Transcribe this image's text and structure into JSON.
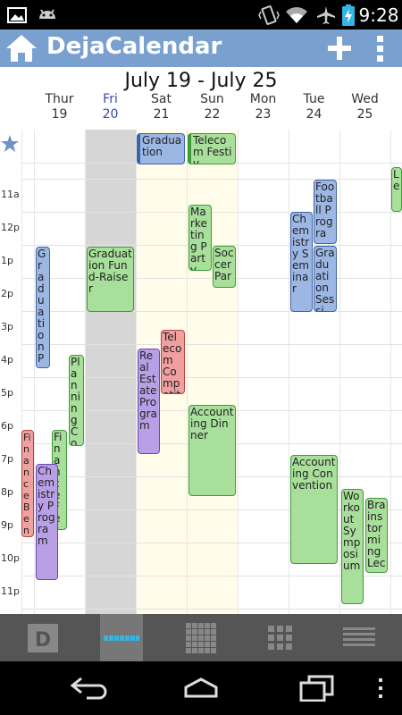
{
  "status_bar": {
    "time": "9:28",
    "icons": [
      "image-icon",
      "android-icon",
      "vibrate-icon",
      "wifi-icon",
      "airplane-icon",
      "battery-charging-icon"
    ]
  },
  "app": {
    "title": "DejaCalendar",
    "icons": [
      "home-icon",
      "add-icon",
      "overflow-menu-icon"
    ]
  },
  "week": {
    "range": "July 19 - July 25",
    "days": [
      {
        "name": "Thur",
        "date": "19"
      },
      {
        "name": "Fri",
        "date": "20"
      },
      {
        "name": "Sat",
        "date": "21"
      },
      {
        "name": "Sun",
        "date": "22"
      },
      {
        "name": "Mon",
        "date": "23"
      },
      {
        "name": "Tue",
        "date": "24"
      },
      {
        "name": "Wed",
        "date": "25"
      }
    ],
    "today_index": 1,
    "hour_labels": [
      "11a",
      "12p",
      "1p",
      "2p",
      "3p",
      "4p",
      "5p",
      "6p",
      "7p",
      "8p",
      "9p",
      "10p",
      "11p"
    ]
  },
  "events": [
    {
      "title": "Graduation",
      "color": "blue",
      "allday": true
    },
    {
      "title": "Telecom Festiv",
      "color": "green",
      "allday": true
    },
    {
      "title": "Graduation Fund-Raiser",
      "color": "green"
    },
    {
      "title": "Graduation Party",
      "color": "blue"
    },
    {
      "title": "Planning Co",
      "color": "green"
    },
    {
      "title": "Finance Fes",
      "color": "green"
    },
    {
      "title": "Chemistry Program",
      "color": "purple"
    },
    {
      "title": "Fi nance Bene fit",
      "color": "red"
    },
    {
      "title": "Marketing Party",
      "color": "green"
    },
    {
      "title": "Soccer Par",
      "color": "green"
    },
    {
      "title": "Telecom Competiti",
      "color": "red"
    },
    {
      "title": "Real Estate Program",
      "color": "purple"
    },
    {
      "title": "Accounting Dinner",
      "color": "green"
    },
    {
      "title": "Chemistry Seminar",
      "color": "blue"
    },
    {
      "title": "Football Progra",
      "color": "blue"
    },
    {
      "title": "Graduation Sessi",
      "color": "blue"
    },
    {
      "title": "Accounting Convention",
      "color": "green"
    },
    {
      "title": "Workout Symposium",
      "color": "green"
    },
    {
      "title": "Brainstorming Lec",
      "color": "green"
    },
    {
      "title": "Le",
      "color": "green"
    }
  ],
  "bottom_nav": [
    "day-view-icon",
    "week-view-icon",
    "month-view-icon",
    "grid-view-icon",
    "list-view-icon"
  ],
  "colors": {
    "action_bar": "#7aa0cf",
    "today_column": "#d6d6d6",
    "weekend_column": "#fffde9",
    "today_text": "#3845b8",
    "star": "#6f93c9"
  }
}
